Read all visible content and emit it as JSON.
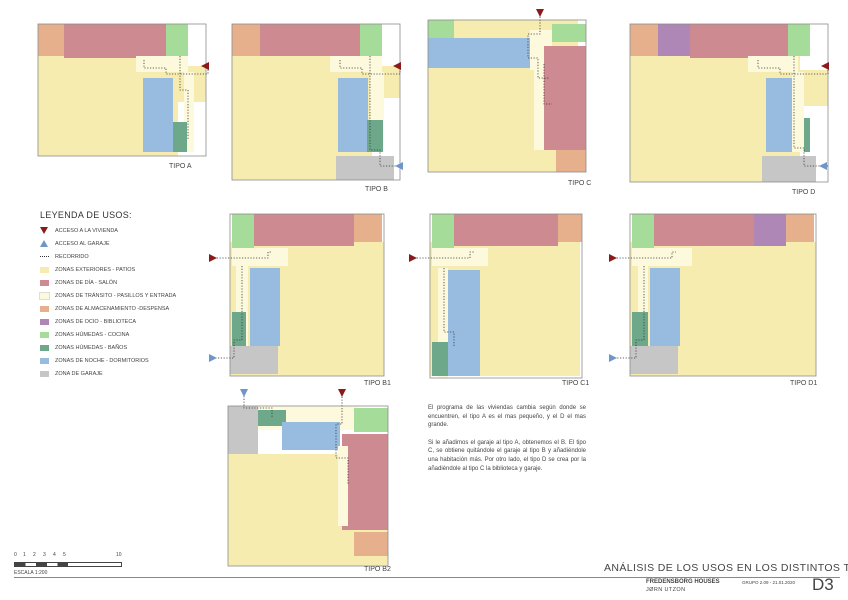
{
  "colors": {
    "patio": "#f7ecb0",
    "dia": "#cd8a91",
    "transito": "#fcf9dc",
    "almacen": "#e6b08c",
    "ocio": "#ae87b7",
    "cocina": "#a6dc9a",
    "banos": "#6ea88b",
    "noche": "#97bce0",
    "garaje": "#c6c6c6",
    "acceso_vivienda": "#8b1a1a",
    "acceso_garaje": "#6e96c8",
    "wall": "#8c8c8c"
  },
  "plans": {
    "a": {
      "label": "TIPO A"
    },
    "b": {
      "label": "TIPO B"
    },
    "c": {
      "label": "TIPO C"
    },
    "d": {
      "label": "TIPO D"
    },
    "b1": {
      "label": "TIPO B1"
    },
    "c1": {
      "label": "TIPO C1"
    },
    "d1": {
      "label": "TIPO D1"
    },
    "b2": {
      "label": "TIPO B2"
    }
  },
  "legend": {
    "title": "LEYENDA DE USOS:",
    "items": [
      {
        "text": "ACCESO A LA VIVIENDA",
        "kind": "triangle",
        "color": "#8b1a1a"
      },
      {
        "text": "ACCESO AL GARAJE",
        "kind": "triangle",
        "color": "#6e96c8"
      },
      {
        "text": "RECORRIDO",
        "kind": "dots",
        "color": "#333333"
      },
      {
        "text": "ZONAS EXTERIORES - PATIOS",
        "kind": "swatch",
        "color": "#f7ecb0"
      },
      {
        "text": "ZONAS DE DÍA - SALÓN",
        "kind": "swatch",
        "color": "#cd8a91"
      },
      {
        "text": "ZONAS DE TRÁNSITO - PASILLOS Y ENTRADA",
        "kind": "swatch",
        "color": "#fcf9dc"
      },
      {
        "text": "ZONAS DE ALMACENAMIENTO -DESPENSA",
        "kind": "swatch",
        "color": "#e6b08c"
      },
      {
        "text": "ZONAS DE OCIO - BIBLIOTECA",
        "kind": "swatch",
        "color": "#ae87b7"
      },
      {
        "text": "ZONAS HÚMEDAS - COCINA",
        "kind": "swatch",
        "color": "#a6dc9a"
      },
      {
        "text": "ZONAS HÚMEDAS - BAÑOS",
        "kind": "swatch",
        "color": "#6ea88b"
      },
      {
        "text": "ZONAS DE NOCHE - DORMITORIOS",
        "kind": "swatch",
        "color": "#97bce0"
      },
      {
        "text": "ZONA DE GARAJE",
        "kind": "swatch",
        "color": "#c6c6c6"
      }
    ]
  },
  "description": {
    "p1": "El programa de las viviendas cambia según donde se encuentren, el tipo A es el mas pequeño, y el D el mas grande.",
    "p2": "Si le añadimos el garaje al tipo A, obtenemos el B. El tipo C, se obtiene quitándole el garaje al tipo B y añadiéndole una habitación más. Por otro lado, el tipo D se crea por la añadiéndole al tipo C la biblioteca y garaje."
  },
  "scale": {
    "ticks": [
      "0",
      "1",
      "2",
      "3",
      "4",
      "5",
      "10"
    ],
    "label": "ESCALA 1:200"
  },
  "titleblock": {
    "title": "ANÁLISIS DE LOS USOS EN LOS DISTINTOS TIPOS",
    "project": "FREDENSBORG HOUSES",
    "author": "JØRN UTZON",
    "group": "GRUPO 2.09 - 21.01.2020",
    "sheet": "D3"
  }
}
